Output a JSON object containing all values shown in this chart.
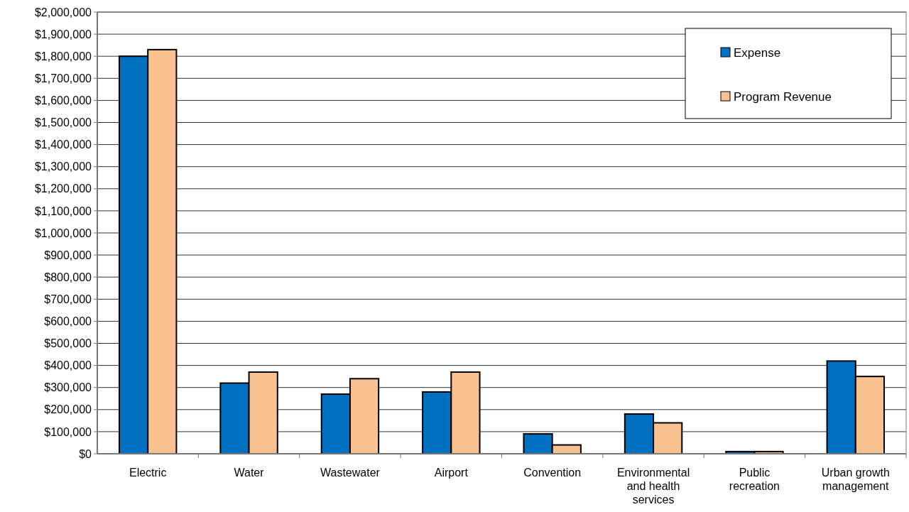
{
  "chart_data": {
    "type": "bar",
    "categories": [
      "Electric",
      "Water",
      "Wastewater",
      "Airport",
      "Convention",
      "Environmental and health services",
      "Public recreation",
      "Urban growth management"
    ],
    "series": [
      {
        "name": "Expense",
        "color": "#0070c0",
        "values": [
          1800000,
          320000,
          270000,
          280000,
          90000,
          180000,
          10000,
          420000
        ]
      },
      {
        "name": "Program Revenue",
        "color": "#f9c090",
        "values": [
          1830000,
          370000,
          340000,
          370000,
          40000,
          140000,
          10000,
          350000
        ]
      }
    ],
    "ylim": [
      0,
      2000000
    ],
    "yticks": [
      {
        "value": 0,
        "label": "$0"
      },
      {
        "value": 100000,
        "label": "$100,000"
      },
      {
        "value": 200000,
        "label": "$200,000"
      },
      {
        "value": 300000,
        "label": "$300,000"
      },
      {
        "value": 400000,
        "label": "$400,000"
      },
      {
        "value": 500000,
        "label": "$500,000"
      },
      {
        "value": 600000,
        "label": "$600,000"
      },
      {
        "value": 700000,
        "label": "$700,000"
      },
      {
        "value": 800000,
        "label": "$800,000"
      },
      {
        "value": 900000,
        "label": "$900,000"
      },
      {
        "value": 1000000,
        "label": "$1,000,000"
      },
      {
        "value": 1100000,
        "label": "$1,100,000"
      },
      {
        "value": 1200000,
        "label": "$1,200,000"
      },
      {
        "value": 1300000,
        "label": "$1,300,000"
      },
      {
        "value": 1400000,
        "label": "$1,400,000"
      },
      {
        "value": 1500000,
        "label": "$1,500,000"
      },
      {
        "value": 1600000,
        "label": "$1,600,000"
      },
      {
        "value": 1700000,
        "label": "$1,700,000"
      },
      {
        "value": 1800000,
        "label": "$1,800,000"
      },
      {
        "value": 1900000,
        "label": "$1,900,000"
      },
      {
        "value": 2000000,
        "label": "$2,000,000"
      }
    ],
    "grid": "y",
    "legend": "top right"
  }
}
